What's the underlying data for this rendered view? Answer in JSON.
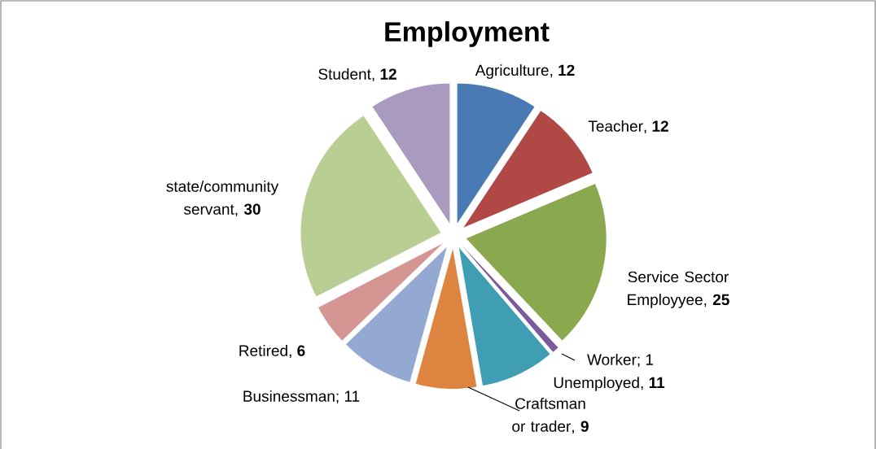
{
  "chart_data": {
    "type": "pie",
    "title": "Employment",
    "categories": [
      "Agriculture",
      "Teacher",
      "Service Sector Employyee",
      "Worker",
      "Unemployed",
      "Craftsman or trader",
      "Businessman",
      "Retired",
      "state/community servant",
      "Student"
    ],
    "values": [
      12,
      12,
      25,
      1,
      11,
      9,
      11,
      6,
      30,
      12
    ],
    "value_labels": [
      ", **12**",
      ", **12**",
      ", **25**",
      "; 1",
      ", **11**",
      ", **9**",
      "; 11",
      ", **6**",
      ", **30**",
      ", **12**"
    ],
    "colors": [
      "#4a7ab4",
      "#b04846",
      "#8aa84e",
      "#7a5a9a",
      "#3f9eb4",
      "#dd8540",
      "#93a9d2",
      "#d49593",
      "#b9ce93",
      "#a99bc0"
    ]
  }
}
